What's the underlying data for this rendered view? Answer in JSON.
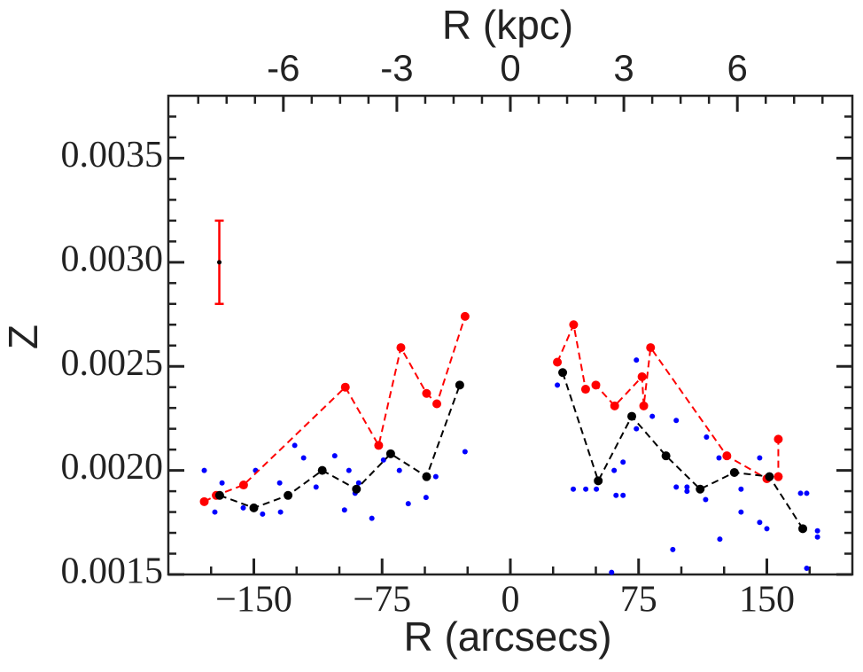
{
  "chart_data": {
    "type": "scatter",
    "xlabel": "R (arcsecs)",
    "ylabel": "Z",
    "x2label": "R (kpc)",
    "xlim": [
      -200,
      200
    ],
    "ylim": [
      0.0015,
      0.0038
    ],
    "x2lim": [
      -9.04,
      9.04
    ],
    "xticks": [
      {
        "value": -150,
        "label": "−150"
      },
      {
        "value": -75,
        "label": "−75"
      },
      0,
      75,
      150
    ],
    "yticks": [
      0.0015,
      {
        "value": 0.002,
        "label": "0.0020"
      },
      0.0025,
      0.003,
      0.0035
    ],
    "yticks_display": [
      "0.0015",
      "0.0020",
      "0.0025",
      "0.0030",
      "0.0035"
    ],
    "x2ticks": [
      -6,
      -3,
      0,
      3,
      6
    ],
    "xminorticks": [
      -175,
      -125,
      -100,
      -50,
      -25,
      25,
      50,
      100,
      125,
      175
    ],
    "yminorticks": [
      0.0016,
      0.0017,
      0.0018,
      0.0019,
      0.0021,
      0.0022,
      0.0023,
      0.0024,
      0.0026,
      0.0027,
      0.0028,
      0.0029,
      0.0031,
      0.0032,
      0.0033,
      0.0034,
      0.0036,
      0.0037
    ],
    "x2minorticks": [
      -8.25,
      -7.5,
      -6.75,
      -5.25,
      -4.5,
      -3.75,
      -2.25,
      -1.5,
      -0.75,
      0.75,
      1.5,
      2.25,
      3.75,
      4.5,
      5.25,
      6.75,
      7.5,
      8.25
    ],
    "series": [
      {
        "color": "#0000ff",
        "mode": "markers",
        "marker_size": 3,
        "x": [
          -179,
          -172.8,
          -168.6,
          -156.2,
          -149,
          -144.9,
          -134.9,
          -134.4,
          -126.1,
          -120.9,
          -113.6,
          -102.7,
          -97,
          -94.4,
          -90.8,
          -88.7,
          -81,
          -74.2,
          -64.9,
          -59.7,
          -49.3,
          -43.6,
          -26.5,
          27.5,
          36.8,
          44.1,
          50.3,
          60.7,
          61.8,
          65.9,
          65.9,
          73.7,
          73.7,
          83,
          95,
          97,
          97,
          103.3,
          103.3,
          114.2,
          114.7,
          122,
          122.5,
          134.9,
          134.9,
          145.8,
          145.8,
          150,
          169.7,
          173.3,
          173.3,
          179.6,
          179.6,
          59.2
        ],
        "values": [
          0.002,
          0.0018,
          0.00194,
          0.00182,
          0.002,
          0.00179,
          0.00194,
          0.0018,
          0.00212,
          0.00206,
          0.00192,
          0.00207,
          0.00181,
          0.002,
          0.00189,
          0.00194,
          0.00177,
          0.00205,
          0.002,
          0.00184,
          0.00187,
          0.00197,
          0.00209,
          0.00241,
          0.00191,
          0.00191,
          0.00191,
          0.002,
          0.00188,
          0.00204,
          0.00188,
          0.00253,
          0.0022,
          0.00226,
          0.00162,
          0.00224,
          0.00192,
          0.00192,
          0.0019,
          0.00186,
          0.00216,
          0.00206,
          0.00167,
          0.00191,
          0.0018,
          0.00206,
          0.00175,
          0.00172,
          0.00189,
          0.00189,
          0.00153,
          0.00171,
          0.00168,
          0.00151
        ]
      },
      {
        "color": "#ff0000",
        "mode": "lines+markers",
        "linestyle": "dashed",
        "marker_size": 5,
        "x": [
          -179,
          -172,
          -156,
          -96.5,
          -77,
          -64,
          -49,
          -43,
          -26.5,
          null,
          27.5,
          37,
          44,
          50,
          61,
          77,
          78,
          82,
          126.6,
          150,
          156.7,
          156.7
        ],
        "values": [
          0.00185,
          0.00188,
          0.00193,
          0.0024,
          0.00212,
          0.00259,
          0.00237,
          0.00232,
          0.00274,
          null,
          0.00252,
          0.0027,
          0.00239,
          0.00241,
          0.00231,
          0.00245,
          0.00231,
          0.00259,
          0.00207,
          0.00196,
          0.00197,
          0.00215
        ]
      },
      {
        "color": "#000000",
        "mode": "lines+markers",
        "linestyle": "dashed",
        "marker_size": 5,
        "x": [
          -170,
          -150,
          -130,
          -110,
          -90,
          -70,
          -49,
          -29.6,
          null,
          30.6,
          51.4,
          71,
          91,
          111,
          131,
          151.5,
          171
        ],
        "values": [
          0.00188,
          0.00182,
          0.00188,
          0.002,
          0.00191,
          0.00208,
          0.00197,
          0.00241,
          null,
          0.00247,
          0.00195,
          0.00226,
          0.00207,
          0.00191,
          0.00199,
          0.00197,
          0.00172
        ]
      }
    ],
    "errorbar": {
      "x": -170.2,
      "y": 0.003,
      "yerr": 0.0002,
      "color": "#ff0000",
      "point_color": "#000000"
    }
  }
}
